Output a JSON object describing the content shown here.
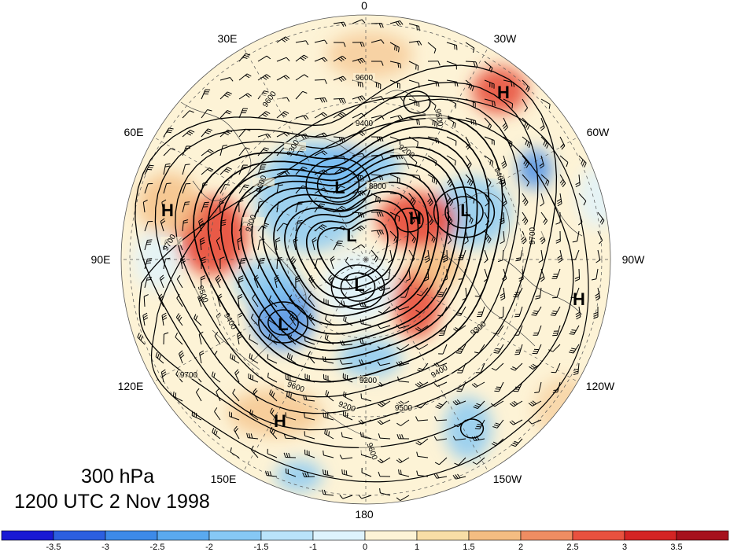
{
  "map": {
    "level_label": "300 hPa",
    "time_label": "1200 UTC 2 Nov 1998",
    "longitude_labels": [
      "0",
      "30W",
      "60W",
      "90W",
      "120W",
      "150W",
      "180",
      "150E",
      "120E",
      "90E",
      "60E",
      "30E"
    ],
    "centers": [
      {
        "type": "H",
        "name": "high-north-atlantic"
      },
      {
        "type": "H",
        "name": "high-central-asia"
      },
      {
        "type": "H",
        "name": "high-north-pacific"
      },
      {
        "type": "H",
        "name": "high-greenland"
      },
      {
        "type": "H",
        "name": "high-west-canada"
      },
      {
        "type": "L",
        "name": "low-scandinavia"
      },
      {
        "type": "L",
        "name": "low-arctic-1"
      },
      {
        "type": "L",
        "name": "low-arctic-2"
      },
      {
        "type": "L",
        "name": "low-siberia"
      },
      {
        "type": "L",
        "name": "low-baffin"
      }
    ],
    "contour_labels": [
      "9600",
      "9600",
      "9500",
      "9400",
      "9300",
      "9200",
      "8800",
      "9400",
      "9600",
      "9700",
      "9300",
      "9500",
      "9400",
      "9700",
      "9600",
      "9200",
      "9500",
      "9400",
      "9300",
      "9200",
      "9600",
      "9700"
    ],
    "colorbar": {
      "ticks": [
        "-3.5",
        "-3",
        "-2.5",
        "-2",
        "-1.5",
        "-1",
        "0",
        "1",
        "1.5",
        "2",
        "2.5",
        "3",
        "3.5"
      ],
      "colors": [
        "#1a1ad4",
        "#2c5fe0",
        "#3d8ae8",
        "#5aa9ef",
        "#86c8f5",
        "#b9e3fa",
        "#def3fd",
        "#fdf3d6",
        "#f8dea6",
        "#f4bd82",
        "#ef8d62",
        "#e8513f",
        "#d42424",
        "#a6111d"
      ]
    },
    "shading_colors": {
      "blue_strong": "#3d8ae8",
      "blue_mid": "#86c8f5",
      "blue_light": "#def3fd",
      "orange_light": "#fdf3d6",
      "orange_mid": "#f4bd82",
      "red_strong": "#e8513f"
    }
  }
}
